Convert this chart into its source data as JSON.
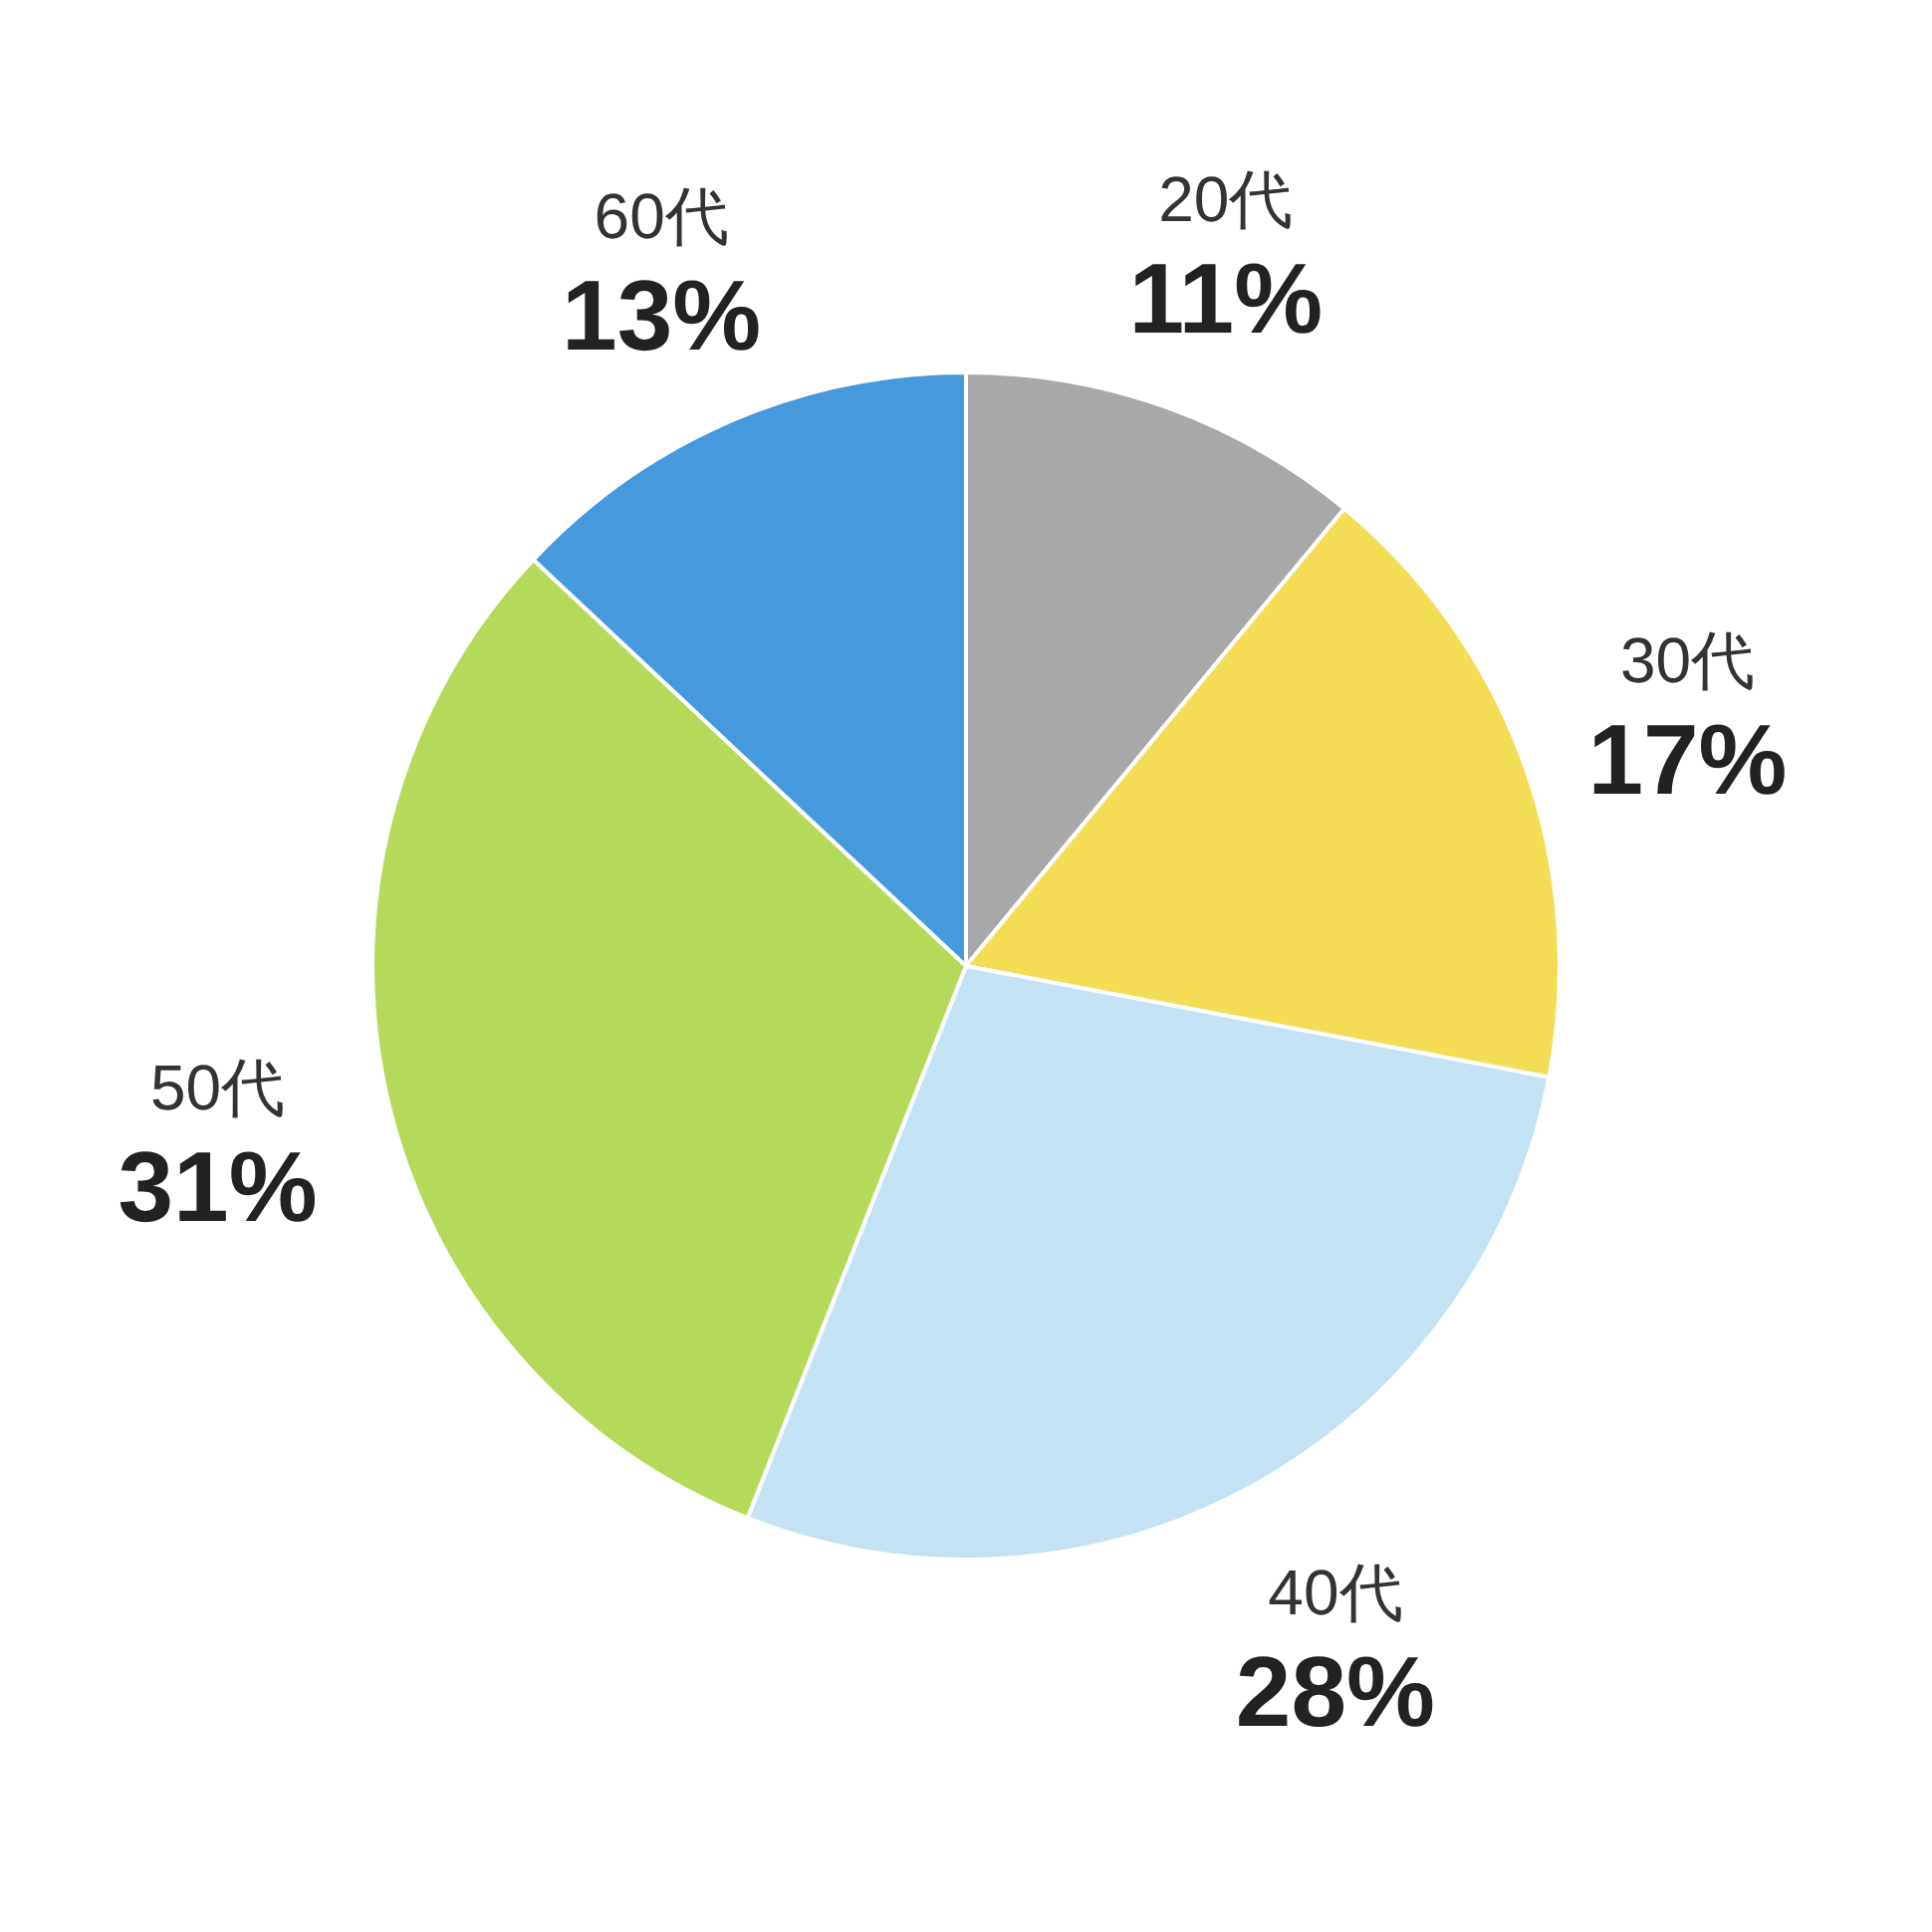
{
  "chart_data": {
    "type": "pie",
    "categories": [
      "20代",
      "30代",
      "40代",
      "50代",
      "60代"
    ],
    "values": [
      11,
      17,
      28,
      31,
      13
    ],
    "colors": [
      "#a8a8a8",
      "#f4dc55",
      "#c3e2f3",
      "#b5da5a",
      "#4699dd"
    ],
    "value_labels": [
      "11%",
      "17%",
      "28%",
      "31%",
      "13%"
    ]
  }
}
